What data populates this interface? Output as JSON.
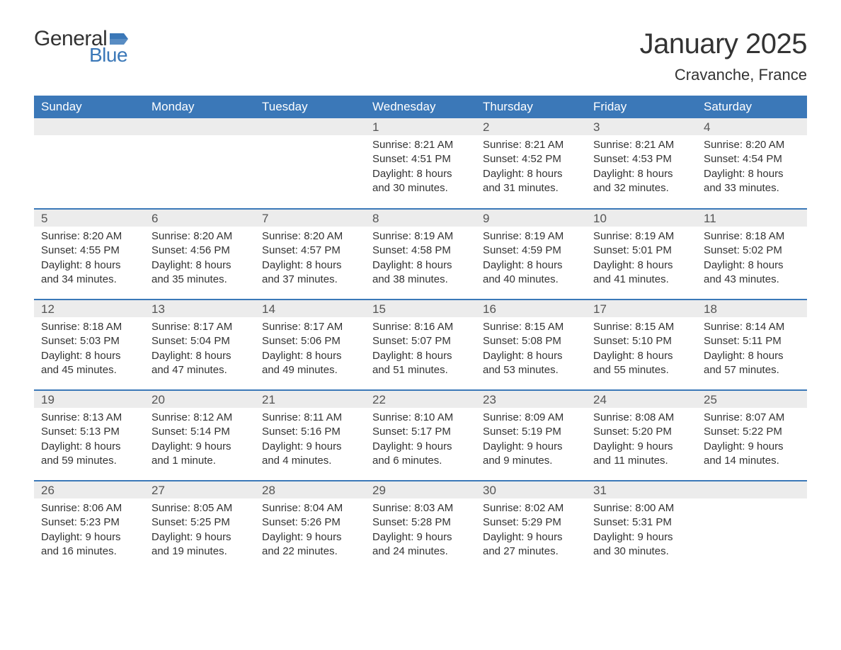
{
  "brand": {
    "general": "General",
    "blue": "Blue",
    "flag_color": "#3b78b8"
  },
  "header": {
    "month_title": "January 2025",
    "location": "Cravanche, France"
  },
  "colors": {
    "header_bg": "#3b78b8",
    "header_text": "#ffffff",
    "band_bg": "#ececec",
    "band_text": "#555555",
    "row_divider": "#3b78b8",
    "body_text": "#333333",
    "page_bg": "#ffffff"
  },
  "typography": {
    "month_title_fontsize": 40,
    "location_fontsize": 22,
    "weekday_fontsize": 17,
    "daynum_fontsize": 17,
    "body_fontsize": 15,
    "font_family": "Arial"
  },
  "calendar": {
    "weekday_labels": [
      "Sunday",
      "Monday",
      "Tuesday",
      "Wednesday",
      "Thursday",
      "Friday",
      "Saturday"
    ],
    "weeks": [
      [
        {
          "day": "",
          "sunrise": "",
          "sunset": "",
          "daylight1": "",
          "daylight2": ""
        },
        {
          "day": "",
          "sunrise": "",
          "sunset": "",
          "daylight1": "",
          "daylight2": ""
        },
        {
          "day": "",
          "sunrise": "",
          "sunset": "",
          "daylight1": "",
          "daylight2": ""
        },
        {
          "day": "1",
          "sunrise": "Sunrise: 8:21 AM",
          "sunset": "Sunset: 4:51 PM",
          "daylight1": "Daylight: 8 hours",
          "daylight2": "and 30 minutes."
        },
        {
          "day": "2",
          "sunrise": "Sunrise: 8:21 AM",
          "sunset": "Sunset: 4:52 PM",
          "daylight1": "Daylight: 8 hours",
          "daylight2": "and 31 minutes."
        },
        {
          "day": "3",
          "sunrise": "Sunrise: 8:21 AM",
          "sunset": "Sunset: 4:53 PM",
          "daylight1": "Daylight: 8 hours",
          "daylight2": "and 32 minutes."
        },
        {
          "day": "4",
          "sunrise": "Sunrise: 8:20 AM",
          "sunset": "Sunset: 4:54 PM",
          "daylight1": "Daylight: 8 hours",
          "daylight2": "and 33 minutes."
        }
      ],
      [
        {
          "day": "5",
          "sunrise": "Sunrise: 8:20 AM",
          "sunset": "Sunset: 4:55 PM",
          "daylight1": "Daylight: 8 hours",
          "daylight2": "and 34 minutes."
        },
        {
          "day": "6",
          "sunrise": "Sunrise: 8:20 AM",
          "sunset": "Sunset: 4:56 PM",
          "daylight1": "Daylight: 8 hours",
          "daylight2": "and 35 minutes."
        },
        {
          "day": "7",
          "sunrise": "Sunrise: 8:20 AM",
          "sunset": "Sunset: 4:57 PM",
          "daylight1": "Daylight: 8 hours",
          "daylight2": "and 37 minutes."
        },
        {
          "day": "8",
          "sunrise": "Sunrise: 8:19 AM",
          "sunset": "Sunset: 4:58 PM",
          "daylight1": "Daylight: 8 hours",
          "daylight2": "and 38 minutes."
        },
        {
          "day": "9",
          "sunrise": "Sunrise: 8:19 AM",
          "sunset": "Sunset: 4:59 PM",
          "daylight1": "Daylight: 8 hours",
          "daylight2": "and 40 minutes."
        },
        {
          "day": "10",
          "sunrise": "Sunrise: 8:19 AM",
          "sunset": "Sunset: 5:01 PM",
          "daylight1": "Daylight: 8 hours",
          "daylight2": "and 41 minutes."
        },
        {
          "day": "11",
          "sunrise": "Sunrise: 8:18 AM",
          "sunset": "Sunset: 5:02 PM",
          "daylight1": "Daylight: 8 hours",
          "daylight2": "and 43 minutes."
        }
      ],
      [
        {
          "day": "12",
          "sunrise": "Sunrise: 8:18 AM",
          "sunset": "Sunset: 5:03 PM",
          "daylight1": "Daylight: 8 hours",
          "daylight2": "and 45 minutes."
        },
        {
          "day": "13",
          "sunrise": "Sunrise: 8:17 AM",
          "sunset": "Sunset: 5:04 PM",
          "daylight1": "Daylight: 8 hours",
          "daylight2": "and 47 minutes."
        },
        {
          "day": "14",
          "sunrise": "Sunrise: 8:17 AM",
          "sunset": "Sunset: 5:06 PM",
          "daylight1": "Daylight: 8 hours",
          "daylight2": "and 49 minutes."
        },
        {
          "day": "15",
          "sunrise": "Sunrise: 8:16 AM",
          "sunset": "Sunset: 5:07 PM",
          "daylight1": "Daylight: 8 hours",
          "daylight2": "and 51 minutes."
        },
        {
          "day": "16",
          "sunrise": "Sunrise: 8:15 AM",
          "sunset": "Sunset: 5:08 PM",
          "daylight1": "Daylight: 8 hours",
          "daylight2": "and 53 minutes."
        },
        {
          "day": "17",
          "sunrise": "Sunrise: 8:15 AM",
          "sunset": "Sunset: 5:10 PM",
          "daylight1": "Daylight: 8 hours",
          "daylight2": "and 55 minutes."
        },
        {
          "day": "18",
          "sunrise": "Sunrise: 8:14 AM",
          "sunset": "Sunset: 5:11 PM",
          "daylight1": "Daylight: 8 hours",
          "daylight2": "and 57 minutes."
        }
      ],
      [
        {
          "day": "19",
          "sunrise": "Sunrise: 8:13 AM",
          "sunset": "Sunset: 5:13 PM",
          "daylight1": "Daylight: 8 hours",
          "daylight2": "and 59 minutes."
        },
        {
          "day": "20",
          "sunrise": "Sunrise: 8:12 AM",
          "sunset": "Sunset: 5:14 PM",
          "daylight1": "Daylight: 9 hours",
          "daylight2": "and 1 minute."
        },
        {
          "day": "21",
          "sunrise": "Sunrise: 8:11 AM",
          "sunset": "Sunset: 5:16 PM",
          "daylight1": "Daylight: 9 hours",
          "daylight2": "and 4 minutes."
        },
        {
          "day": "22",
          "sunrise": "Sunrise: 8:10 AM",
          "sunset": "Sunset: 5:17 PM",
          "daylight1": "Daylight: 9 hours",
          "daylight2": "and 6 minutes."
        },
        {
          "day": "23",
          "sunrise": "Sunrise: 8:09 AM",
          "sunset": "Sunset: 5:19 PM",
          "daylight1": "Daylight: 9 hours",
          "daylight2": "and 9 minutes."
        },
        {
          "day": "24",
          "sunrise": "Sunrise: 8:08 AM",
          "sunset": "Sunset: 5:20 PM",
          "daylight1": "Daylight: 9 hours",
          "daylight2": "and 11 minutes."
        },
        {
          "day": "25",
          "sunrise": "Sunrise: 8:07 AM",
          "sunset": "Sunset: 5:22 PM",
          "daylight1": "Daylight: 9 hours",
          "daylight2": "and 14 minutes."
        }
      ],
      [
        {
          "day": "26",
          "sunrise": "Sunrise: 8:06 AM",
          "sunset": "Sunset: 5:23 PM",
          "daylight1": "Daylight: 9 hours",
          "daylight2": "and 16 minutes."
        },
        {
          "day": "27",
          "sunrise": "Sunrise: 8:05 AM",
          "sunset": "Sunset: 5:25 PM",
          "daylight1": "Daylight: 9 hours",
          "daylight2": "and 19 minutes."
        },
        {
          "day": "28",
          "sunrise": "Sunrise: 8:04 AM",
          "sunset": "Sunset: 5:26 PM",
          "daylight1": "Daylight: 9 hours",
          "daylight2": "and 22 minutes."
        },
        {
          "day": "29",
          "sunrise": "Sunrise: 8:03 AM",
          "sunset": "Sunset: 5:28 PM",
          "daylight1": "Daylight: 9 hours",
          "daylight2": "and 24 minutes."
        },
        {
          "day": "30",
          "sunrise": "Sunrise: 8:02 AM",
          "sunset": "Sunset: 5:29 PM",
          "daylight1": "Daylight: 9 hours",
          "daylight2": "and 27 minutes."
        },
        {
          "day": "31",
          "sunrise": "Sunrise: 8:00 AM",
          "sunset": "Sunset: 5:31 PM",
          "daylight1": "Daylight: 9 hours",
          "daylight2": "and 30 minutes."
        },
        {
          "day": "",
          "sunrise": "",
          "sunset": "",
          "daylight1": "",
          "daylight2": ""
        }
      ]
    ]
  }
}
